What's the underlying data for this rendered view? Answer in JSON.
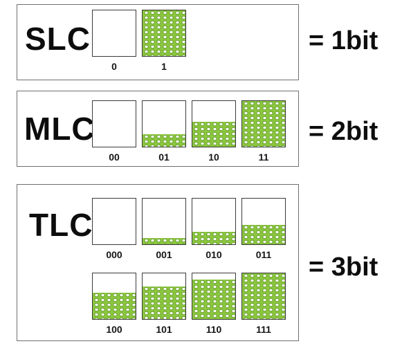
{
  "rows": [
    {
      "type": "SLC",
      "bits": "= 1bit",
      "cells": [
        {
          "code": "0",
          "level": 0
        },
        {
          "code": "1",
          "level": 1
        }
      ]
    },
    {
      "type": "MLC",
      "bits": "= 2bit",
      "cells": [
        {
          "code": "00",
          "level": 0
        },
        {
          "code": "01",
          "level": 0.28
        },
        {
          "code": "10",
          "level": 0.55
        },
        {
          "code": "11",
          "level": 1
        }
      ]
    },
    {
      "type": "TLC",
      "bits": "= 3bit",
      "cells": [
        {
          "code": "000",
          "level": 0
        },
        {
          "code": "001",
          "level": 0.14
        },
        {
          "code": "010",
          "level": 0.28
        },
        {
          "code": "011",
          "level": 0.42
        },
        {
          "code": "100",
          "level": 0.57
        },
        {
          "code": "101",
          "level": 0.71
        },
        {
          "code": "110",
          "level": 0.86
        },
        {
          "code": "111",
          "level": 1
        }
      ]
    }
  ]
}
